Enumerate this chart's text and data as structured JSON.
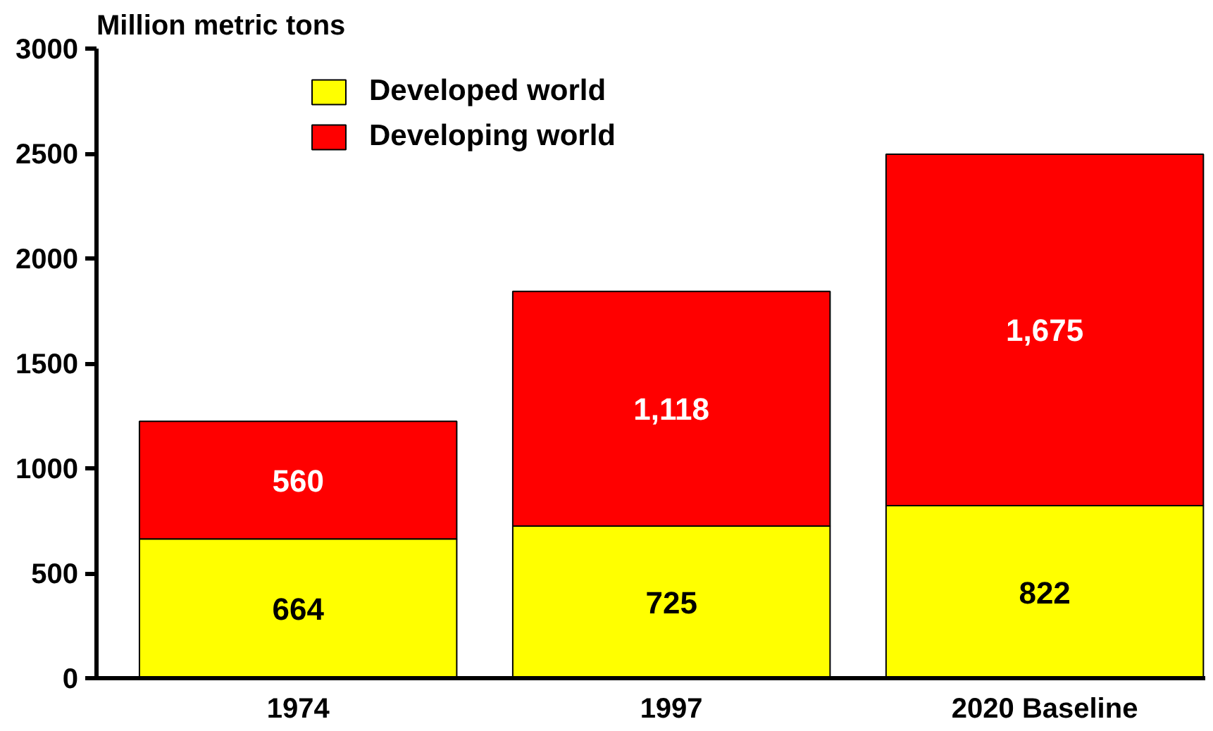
{
  "chart_data": {
    "type": "bar",
    "stacked": true,
    "ylabel": "Million metric tons",
    "categories": [
      "1974",
      "1997",
      "2020 Baseline"
    ],
    "series": [
      {
        "name": "Developed world",
        "color": "#ffff00",
        "values": [
          664,
          725,
          822
        ],
        "value_labels": [
          "664",
          "725",
          "822"
        ]
      },
      {
        "name": "Developing world",
        "color": "#ff0000",
        "values": [
          560,
          1118,
          1675
        ],
        "value_labels": [
          "560",
          "1,118",
          "1,675"
        ]
      }
    ],
    "ylim": [
      0,
      3000
    ],
    "yticks": [
      0,
      500,
      1000,
      1500,
      2000,
      2500,
      3000
    ],
    "grid": false,
    "legend": "top"
  }
}
